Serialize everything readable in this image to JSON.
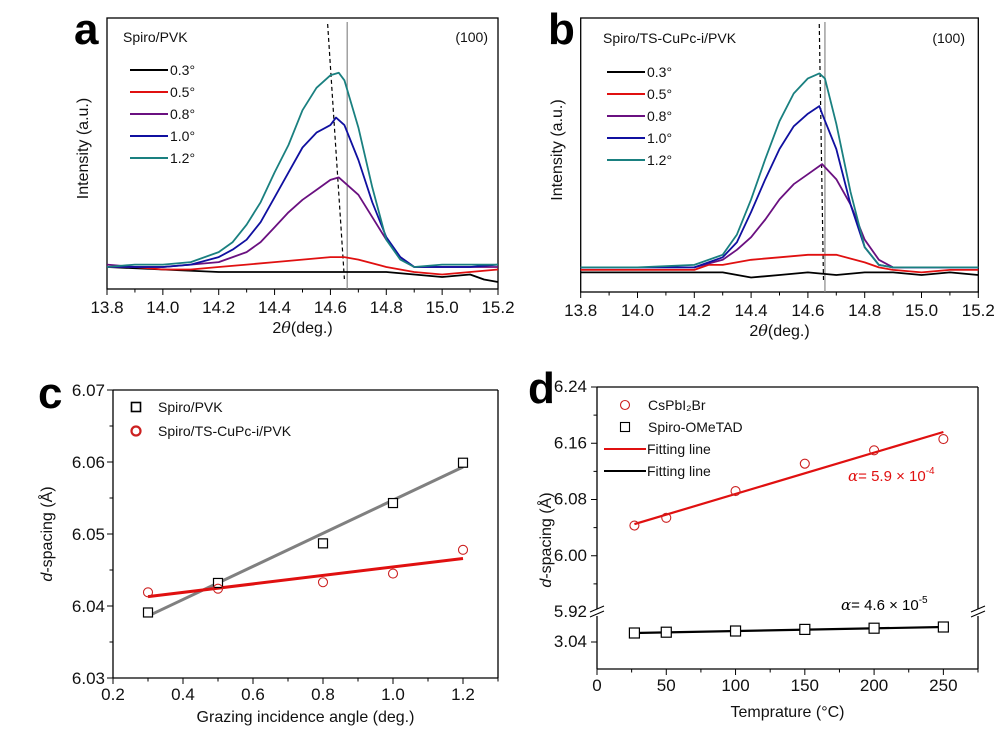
{
  "figure": {
    "panels": [
      "a",
      "b",
      "c",
      "d"
    ]
  },
  "chart_data": [
    {
      "panel": "a",
      "type": "line",
      "title": "Spiro/PVK",
      "annotation": "(100)",
      "xlabel": "2θ (deg.)",
      "ylabel": "Intensity (a.u.)",
      "xlim": [
        13.8,
        15.2
      ],
      "xticks": [
        "13.8",
        "14.0",
        "14.2",
        "14.4",
        "14.6",
        "14.8",
        "15.0",
        "15.2"
      ],
      "ylim": [
        0,
        1
      ],
      "legend_position": "top-left",
      "reference_line_solid_x": 14.66,
      "peak_shift_dashed": [
        [
          14.59,
          0.93
        ],
        [
          14.65,
          0.03
        ]
      ],
      "series": [
        {
          "name": "0.3°",
          "color": "#000000",
          "x": [
            13.8,
            14.0,
            14.2,
            14.4,
            14.6,
            14.8,
            14.9,
            15.0,
            15.1,
            15.15,
            15.2
          ],
          "y": [
            0.04,
            0.03,
            0.02,
            0.02,
            0.02,
            0.02,
            0.01,
            0.0,
            0.01,
            -0.01,
            -0.02
          ]
        },
        {
          "name": "0.5°",
          "color": "#e01010",
          "x": [
            13.8,
            13.9,
            14.0,
            14.1,
            14.2,
            14.3,
            14.4,
            14.5,
            14.6,
            14.65,
            14.7,
            14.8,
            14.9,
            15.0,
            15.1,
            15.2
          ],
          "y": [
            0.04,
            0.04,
            0.03,
            0.03,
            0.04,
            0.05,
            0.06,
            0.07,
            0.08,
            0.08,
            0.07,
            0.04,
            0.02,
            0.01,
            0.02,
            0.03
          ]
        },
        {
          "name": "0.8°",
          "color": "#6a1080",
          "x": [
            13.8,
            13.9,
            14.0,
            14.1,
            14.2,
            14.25,
            14.3,
            14.35,
            14.4,
            14.45,
            14.5,
            14.55,
            14.6,
            14.63,
            14.7,
            14.75,
            14.8,
            14.85,
            14.9,
            15.0,
            15.1,
            15.2
          ],
          "y": [
            0.05,
            0.04,
            0.04,
            0.05,
            0.06,
            0.08,
            0.1,
            0.14,
            0.2,
            0.26,
            0.31,
            0.35,
            0.39,
            0.4,
            0.33,
            0.24,
            0.15,
            0.08,
            0.04,
            0.04,
            0.04,
            0.04
          ]
        },
        {
          "name": "1.0°",
          "color": "#1010a0",
          "x": [
            13.8,
            13.9,
            14.0,
            14.1,
            14.2,
            14.25,
            14.3,
            14.35,
            14.4,
            14.45,
            14.5,
            14.55,
            14.6,
            14.62,
            14.65,
            14.7,
            14.75,
            14.8,
            14.85,
            14.9,
            15.0,
            15.1,
            15.2
          ],
          "y": [
            0.04,
            0.04,
            0.04,
            0.05,
            0.08,
            0.11,
            0.15,
            0.22,
            0.32,
            0.42,
            0.52,
            0.58,
            0.61,
            0.64,
            0.61,
            0.47,
            0.3,
            0.16,
            0.08,
            0.04,
            0.04,
            0.04,
            0.05
          ]
        },
        {
          "name": "1.2°",
          "color": "#1a8080",
          "x": [
            13.8,
            13.9,
            14.0,
            14.1,
            14.2,
            14.25,
            14.3,
            14.35,
            14.4,
            14.45,
            14.5,
            14.55,
            14.6,
            14.63,
            14.65,
            14.7,
            14.75,
            14.8,
            14.85,
            14.9,
            15.0,
            15.1,
            15.2
          ],
          "y": [
            0.04,
            0.05,
            0.05,
            0.06,
            0.1,
            0.14,
            0.21,
            0.3,
            0.42,
            0.53,
            0.67,
            0.76,
            0.81,
            0.82,
            0.79,
            0.6,
            0.36,
            0.15,
            0.07,
            0.04,
            0.05,
            0.05,
            0.05
          ]
        }
      ]
    },
    {
      "panel": "b",
      "type": "line",
      "title": "Spiro/TS-CuPc-i/PVK",
      "annotation": "(100)",
      "xlabel": "2θ (deg.)",
      "ylabel": "Intensity (a.u.)",
      "xlim": [
        13.8,
        15.2
      ],
      "xticks": [
        "13.8",
        "14.0",
        "14.2",
        "14.4",
        "14.6",
        "14.8",
        "15.0",
        "15.2"
      ],
      "ylim": [
        0,
        1
      ],
      "legend_position": "top-left",
      "reference_line_solid_x": 14.66,
      "peak_shift_dashed": [
        [
          14.64,
          0.93
        ],
        [
          14.655,
          0.03
        ]
      ],
      "series": [
        {
          "name": "0.3°",
          "color": "#000000",
          "x": [
            13.8,
            14.0,
            14.2,
            14.3,
            14.4,
            14.5,
            14.6,
            14.7,
            14.8,
            14.9,
            15.0,
            15.1,
            15.2
          ],
          "y": [
            0.03,
            0.03,
            0.03,
            0.03,
            0.01,
            0.02,
            0.03,
            0.02,
            0.03,
            0.03,
            0.02,
            0.03,
            0.02
          ]
        },
        {
          "name": "0.5°",
          "color": "#e01010",
          "x": [
            13.8,
            14.0,
            14.2,
            14.25,
            14.3,
            14.4,
            14.5,
            14.6,
            14.65,
            14.7,
            14.8,
            14.85,
            14.9,
            15.0,
            15.1,
            15.2
          ],
          "y": [
            0.04,
            0.04,
            0.04,
            0.06,
            0.06,
            0.08,
            0.09,
            0.1,
            0.1,
            0.1,
            0.07,
            0.05,
            0.04,
            0.03,
            0.04,
            0.04
          ]
        },
        {
          "name": "0.8°",
          "color": "#6a1080",
          "x": [
            13.8,
            14.0,
            14.2,
            14.3,
            14.35,
            14.4,
            14.45,
            14.5,
            14.55,
            14.6,
            14.65,
            14.7,
            14.75,
            14.8,
            14.85,
            14.9,
            15.0,
            15.1,
            15.2
          ],
          "y": [
            0.05,
            0.05,
            0.05,
            0.08,
            0.12,
            0.17,
            0.24,
            0.32,
            0.38,
            0.42,
            0.46,
            0.4,
            0.3,
            0.16,
            0.08,
            0.05,
            0.05,
            0.05,
            0.05
          ]
        },
        {
          "name": "1.0°",
          "color": "#1010a0",
          "x": [
            13.8,
            14.0,
            14.2,
            14.3,
            14.35,
            14.4,
            14.45,
            14.5,
            14.55,
            14.6,
            14.64,
            14.65,
            14.7,
            14.75,
            14.8,
            14.85,
            14.9,
            15.0,
            15.1,
            15.2
          ],
          "y": [
            0.05,
            0.05,
            0.05,
            0.09,
            0.15,
            0.27,
            0.4,
            0.52,
            0.61,
            0.66,
            0.69,
            0.66,
            0.52,
            0.3,
            0.13,
            0.06,
            0.05,
            0.05,
            0.05,
            0.05
          ]
        },
        {
          "name": "1.2°",
          "color": "#1a8080",
          "x": [
            13.8,
            14.0,
            14.2,
            14.3,
            14.35,
            14.4,
            14.45,
            14.5,
            14.55,
            14.6,
            14.64,
            14.66,
            14.7,
            14.75,
            14.8,
            14.85,
            14.9,
            15.0,
            15.1,
            15.2
          ],
          "y": [
            0.05,
            0.05,
            0.06,
            0.1,
            0.18,
            0.32,
            0.48,
            0.63,
            0.74,
            0.8,
            0.82,
            0.8,
            0.62,
            0.35,
            0.13,
            0.06,
            0.05,
            0.05,
            0.05,
            0.05
          ]
        }
      ]
    },
    {
      "panel": "c",
      "type": "scatter",
      "xlabel": "Grazing incidence angle (deg.)",
      "ylabel": "d-spacing (Å)",
      "xlim": [
        0.2,
        1.3
      ],
      "ylim": [
        6.03,
        6.07
      ],
      "xticks": [
        "0.2",
        "0.4",
        "0.6",
        "0.8",
        "1.0",
        "1.2"
      ],
      "yticks": [
        "6.03",
        "6.04",
        "6.05",
        "6.06",
        "6.07"
      ],
      "legend_position": "top-left",
      "series": [
        {
          "name": "Spiro/PVK",
          "marker": "square",
          "color": "#000000",
          "fit_color": "#808080",
          "x": [
            0.3,
            0.5,
            0.8,
            1.0,
            1.2
          ],
          "y": [
            6.0391,
            6.0432,
            6.0487,
            6.0543,
            6.0599
          ],
          "fit": [
            [
              0.3,
              6.0386
            ],
            [
              1.2,
              6.0593
            ]
          ]
        },
        {
          "name": "Spiro/TS-CuPc-i/PVK",
          "marker": "circle",
          "color": "#cc2020",
          "fit_color": "#e01010",
          "x": [
            0.3,
            0.5,
            0.8,
            1.0,
            1.2
          ],
          "y": [
            6.0419,
            6.0424,
            6.0433,
            6.0445,
            6.0478
          ],
          "fit": [
            [
              0.3,
              6.0413
            ],
            [
              1.2,
              6.0466
            ]
          ]
        }
      ]
    },
    {
      "panel": "d",
      "type": "scatter",
      "xlabel": "Temprature (°C)",
      "ylabel": "d-spacing (Å)",
      "xlim": [
        0,
        275
      ],
      "ylim_upper": [
        5.92,
        6.24
      ],
      "ylim_lower_tick": "3.04",
      "axis_break": "between 5.92 and 3.04",
      "xticks": [
        "0",
        "50",
        "100",
        "150",
        "200",
        "250"
      ],
      "yticks": [
        "3.04",
        "5.92",
        "6.00",
        "6.08",
        "6.16",
        "6.24"
      ],
      "legend_position": "top-left",
      "series": [
        {
          "name": "CsPbI₂Br",
          "marker": "circle",
          "color": "#cc2020",
          "x": [
            27,
            50,
            100,
            150,
            200,
            250
          ],
          "y": [
            6.043,
            6.054,
            6.092,
            6.131,
            6.15,
            6.166
          ]
        },
        {
          "name": "Spiro-OMeTAD",
          "marker": "square",
          "color": "#000000",
          "x": [
            27,
            50,
            100,
            150,
            200,
            250
          ],
          "y_relative": [
            0.0,
            0.002,
            0.005,
            0.009,
            0.012,
            0.015
          ]
        }
      ],
      "fits": [
        {
          "name": "Fitting line",
          "color": "#e01010",
          "segment": [
            [
              27,
              6.045
            ],
            [
              250,
              6.176
            ]
          ]
        },
        {
          "name": "Fitting line",
          "color": "#000000"
        }
      ],
      "annotations": [
        {
          "text_symbol": "α",
          "text_value": "= 5.9 × 10",
          "exponent": "-4",
          "color": "#e01010"
        },
        {
          "text_symbol": "α",
          "text_value": "= 4.6 × 10",
          "exponent": "-5",
          "color": "#000000"
        }
      ]
    }
  ]
}
